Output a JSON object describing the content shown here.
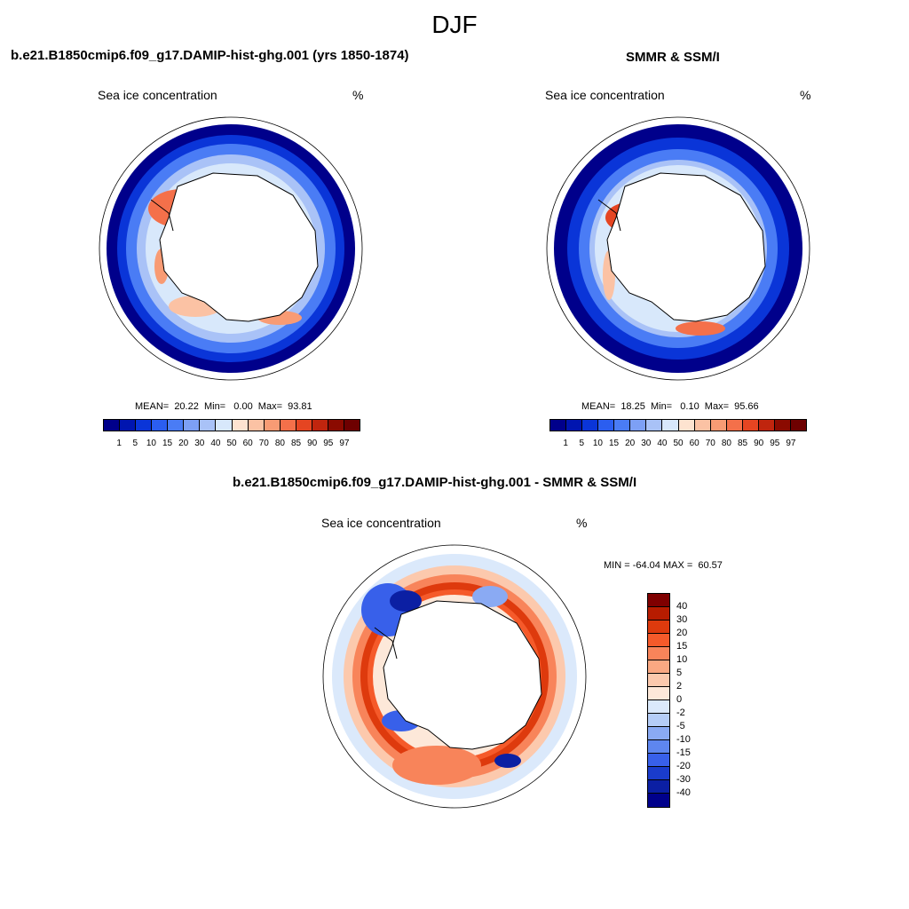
{
  "figure": {
    "title": "DJF"
  },
  "panels": {
    "model": {
      "title": "b.e21.B1850cmip6.f09_g17.DAMIP-hist-ghg.001 (yrs 1850-1874)",
      "variable": "Sea ice concentration",
      "units": "%",
      "stats": "MEAN=  20.22  Min=   0.00  Max=  93.81"
    },
    "obs": {
      "title": "SMMR & SSM/I",
      "variable": "Sea ice concentration",
      "units": "%",
      "stats": "MEAN=  18.25  Min=   0.10  Max=  95.66"
    },
    "diff": {
      "title": "b.e21.B1850cmip6.f09_g17.DAMIP-hist-ghg.001 - SMMR & SSM/I",
      "variable": "Sea ice concentration",
      "units": "%",
      "stats": "MIN = -64.04 MAX =  60.57"
    }
  },
  "colorbars": {
    "concentration": {
      "labels": [
        "1",
        "5",
        "10",
        "15",
        "20",
        "30",
        "40",
        "50",
        "60",
        "70",
        "80",
        "85",
        "90",
        "95",
        "97"
      ],
      "colors": [
        "#00008b",
        "#0015b0",
        "#0a35d8",
        "#2b5ef0",
        "#4a7cf5",
        "#7da0f5",
        "#a9c2f7",
        "#d8e8fb",
        "#fde3d0",
        "#fbc2a4",
        "#f89b74",
        "#f4704a",
        "#e54522",
        "#c0250e",
        "#8b0a00",
        "#6e0000"
      ]
    },
    "difference": {
      "labels": [
        "40",
        "30",
        "20",
        "15",
        "10",
        "5",
        "2",
        "0",
        "-2",
        "-5",
        "-10",
        "-15",
        "-20",
        "-30",
        "-40"
      ],
      "colors": [
        "#7f0000",
        "#b71c00",
        "#de3a0d",
        "#f55a2a",
        "#f8845a",
        "#faa882",
        "#fcc9ad",
        "#fde8d9",
        "#dbe9fb",
        "#b5cdf7",
        "#8aaaf3",
        "#5e86ef",
        "#3860ea",
        "#1a3ccc",
        "#0b1fa3",
        "#00008b"
      ]
    }
  }
}
